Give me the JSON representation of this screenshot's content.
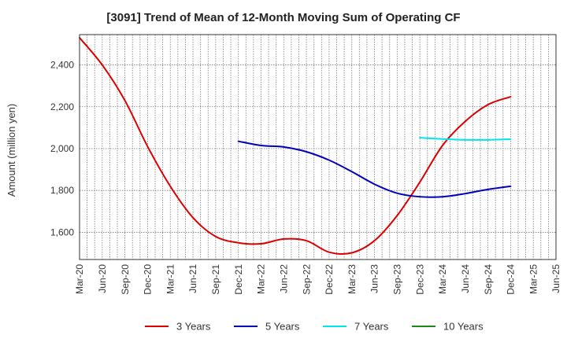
{
  "chart_data": {
    "type": "line",
    "title": "[3091]  Trend of Mean of 12-Month Moving Sum of Operating CF",
    "xlabel": "",
    "ylabel": "Amount (million yen)",
    "ylim": [
      1470,
      2545
    ],
    "yticks": [
      1600,
      1800,
      2000,
      2200,
      2400
    ],
    "ytick_labels": [
      "1,600",
      "1,800",
      "2,000",
      "2,200",
      "2,400"
    ],
    "categories": [
      "Mar-20",
      "Jun-20",
      "Sep-20",
      "Dec-20",
      "Mar-21",
      "Jun-21",
      "Sep-21",
      "Dec-21",
      "Mar-22",
      "Jun-22",
      "Sep-22",
      "Dec-22",
      "Mar-23",
      "Jun-23",
      "Sep-23",
      "Dec-23",
      "Mar-24",
      "Jun-24",
      "Sep-24",
      "Dec-24",
      "Mar-25",
      "Jun-25"
    ],
    "grid": true,
    "legend_position": "bottom",
    "series": [
      {
        "name": "3 Years",
        "color": "#dd0000",
        "points": [
          [
            0,
            2530
          ],
          [
            1,
            2400
          ],
          [
            2,
            2230
          ],
          [
            3,
            2010
          ],
          [
            4,
            1820
          ],
          [
            5,
            1670
          ],
          [
            6,
            1580
          ],
          [
            7,
            1550
          ],
          [
            8,
            1545
          ],
          [
            9,
            1568
          ],
          [
            10,
            1560
          ],
          [
            11,
            1505
          ],
          [
            12,
            1502
          ],
          [
            13,
            1560
          ],
          [
            14,
            1680
          ],
          [
            15,
            1840
          ],
          [
            16,
            2015
          ],
          [
            17,
            2130
          ],
          [
            18,
            2210
          ],
          [
            19,
            2248
          ]
        ]
      },
      {
        "name": "5 Years",
        "color": "#0000bb",
        "points": [
          [
            7,
            2035
          ],
          [
            8,
            2015
          ],
          [
            9,
            2008
          ],
          [
            10,
            1985
          ],
          [
            11,
            1945
          ],
          [
            12,
            1890
          ],
          [
            13,
            1830
          ],
          [
            14,
            1787
          ],
          [
            15,
            1770
          ],
          [
            16,
            1770
          ],
          [
            17,
            1785
          ],
          [
            18,
            1805
          ],
          [
            19,
            1820
          ]
        ]
      },
      {
        "name": "7 Years",
        "color": "#00e5ee",
        "points": [
          [
            15,
            2052
          ],
          [
            16,
            2046
          ],
          [
            17,
            2042
          ],
          [
            18,
            2042
          ],
          [
            19,
            2045
          ]
        ]
      },
      {
        "name": "10 Years",
        "color": "#1a8a1a",
        "points": []
      }
    ]
  }
}
